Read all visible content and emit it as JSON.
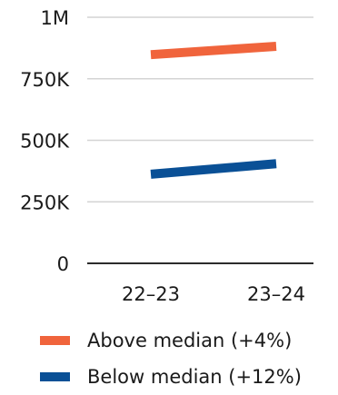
{
  "chart_data": {
    "type": "line",
    "title": "",
    "xlabel": "",
    "ylabel": "",
    "x": [
      "22–23",
      "23–24"
    ],
    "ylim": [
      0,
      1000000
    ],
    "yticks": [
      0,
      250000,
      500000,
      750000,
      1000000
    ],
    "ytick_labels": [
      "0",
      "250K",
      "500K",
      "750K",
      "1M"
    ],
    "grid": true,
    "legend_position": "bottom",
    "series": [
      {
        "name": "Above median (+4%)",
        "values": [
          848000,
          882000
        ],
        "color": "#f0643c"
      },
      {
        "name": "Below median (+12%)",
        "values": [
          362000,
          405000
        ],
        "color": "#0a5096"
      }
    ]
  }
}
